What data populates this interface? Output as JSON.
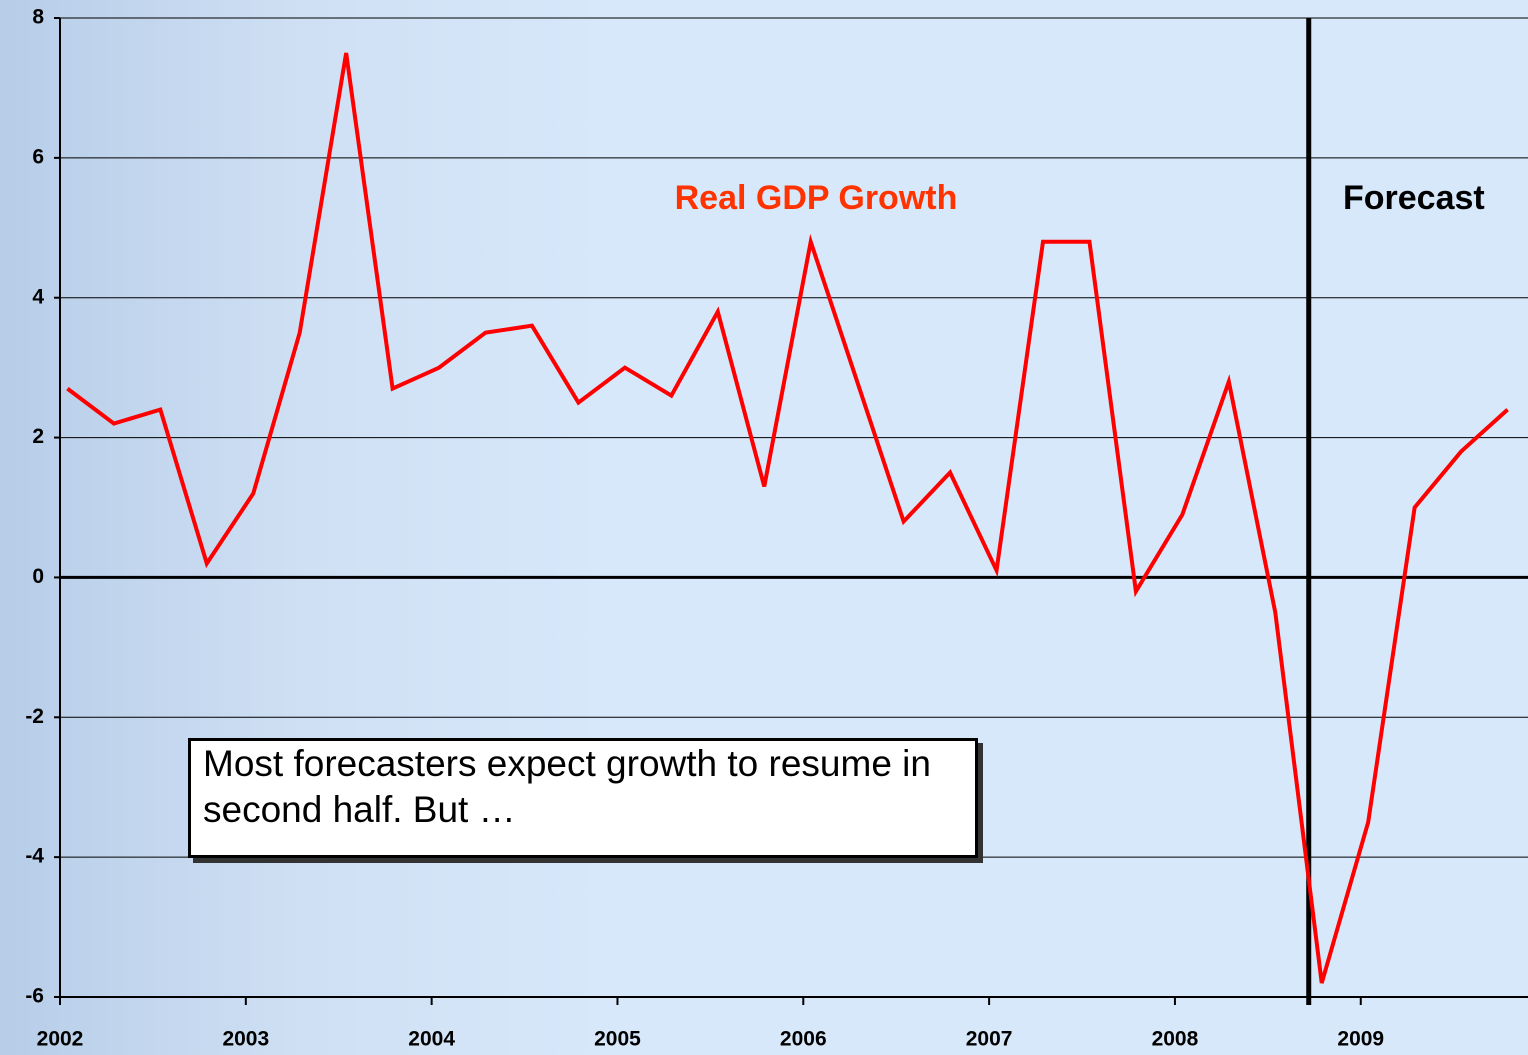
{
  "chart_data": {
    "type": "line",
    "annotations": [
      "Forecast",
      "Most forecasters expect growth to resume in second half. But …"
    ],
    "forecast_x": 2008.72,
    "series": [
      {
        "name": "Real GDP Growth",
        "color": "#ff0000",
        "x": [
          2002.04,
          2002.29,
          2002.54,
          2002.79,
          2003.04,
          2003.29,
          2003.54,
          2003.79,
          2004.04,
          2004.29,
          2004.54,
          2004.79,
          2005.04,
          2005.29,
          2005.54,
          2005.79,
          2006.04,
          2006.29,
          2006.54,
          2006.79,
          2007.04,
          2007.29,
          2007.54,
          2007.79,
          2008.04,
          2008.29,
          2008.54,
          2008.79,
          2009.04,
          2009.29,
          2009.54,
          2009.79
        ],
        "values": [
          2.7,
          2.2,
          2.4,
          0.2,
          1.2,
          3.5,
          7.5,
          2.7,
          3.0,
          3.5,
          3.6,
          2.5,
          3.0,
          2.6,
          3.8,
          1.3,
          4.8,
          2.8,
          0.8,
          1.5,
          0.1,
          4.8,
          4.8,
          -0.2,
          0.9,
          2.8,
          -0.5,
          -5.8,
          -3.5,
          1.0,
          1.8,
          2.4
        ]
      }
    ],
    "xlim": [
      2002,
      2009.9
    ],
    "xticks": [
      2002,
      2003,
      2004,
      2005,
      2006,
      2007,
      2008,
      2009
    ],
    "ylim": [
      -6,
      8
    ],
    "yticks": [
      -6,
      -4,
      -2,
      0,
      2,
      4,
      6,
      8
    ],
    "grid": true
  }
}
